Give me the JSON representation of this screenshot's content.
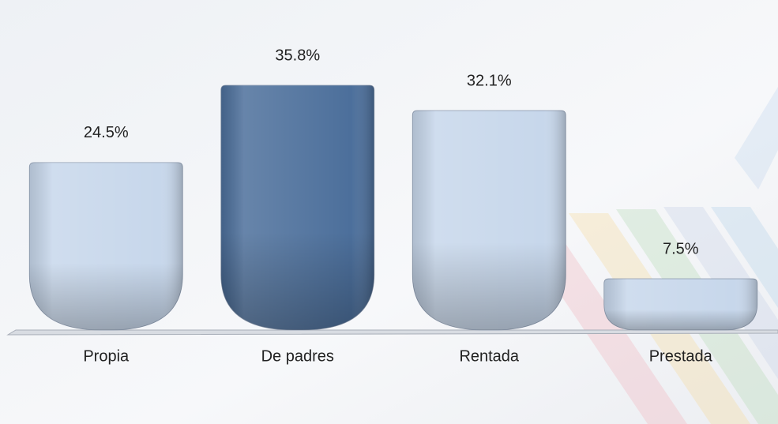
{
  "chart_data": {
    "type": "bar",
    "categories": [
      "Propia",
      "De padres",
      "Rentada",
      "Prestada"
    ],
    "values": [
      24.5,
      35.8,
      32.1,
      7.5
    ],
    "value_labels": [
      "24.5%",
      "35.8%",
      "32.1%",
      "7.5%"
    ],
    "colors": [
      "#c7d7eb",
      "#4c6f9b",
      "#c7d7eb",
      "#c7d7eb"
    ]
  }
}
